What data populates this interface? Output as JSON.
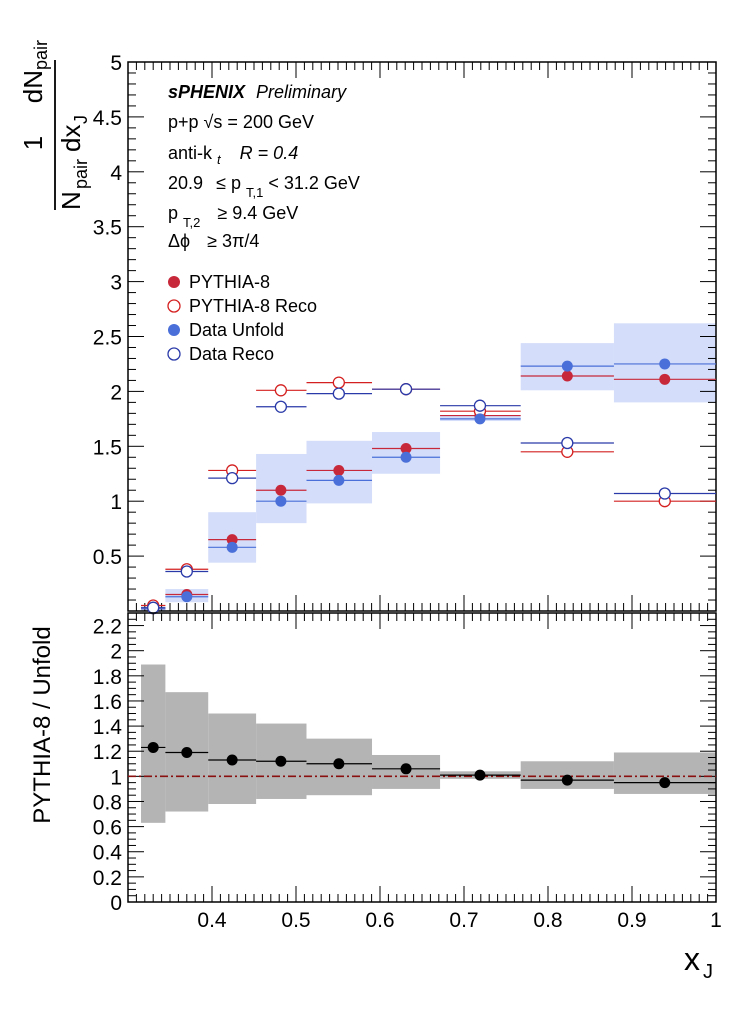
{
  "chart_data": [
    {
      "type": "scatter",
      "panel": "top",
      "ylabel": "1/N_pair dN_pair/dx_J",
      "ylim": [
        0,
        5
      ],
      "xlim": [
        0.3,
        1.0
      ],
      "yticks": [
        "5",
        "4.5",
        "4",
        "3.5",
        "3",
        "2.5",
        "2",
        "1.5",
        "1",
        "0.5"
      ],
      "annotations": {
        "experiment": "sPHENIX",
        "status": "Preliminary",
        "system": "p+p  √s = 200 GeV",
        "jet_algo_pre": "anti-k",
        "jet_algo_sub": "t",
        "jet_R": "R = 0.4",
        "pt1_pre": "20.9",
        "pt1_mid": "≤ p",
        "pt1_sub": "T,1",
        "pt1_post": "< 31.2 GeV",
        "pt2_pre": "p",
        "pt2_sub": "T,2",
        "pt2_post": "≥ 9.4 GeV",
        "dphi_pre": "Δϕ",
        "dphi_post": "≥ 3π/4"
      },
      "bins": [
        0.3155,
        0.3445,
        0.3955,
        0.4525,
        0.5125,
        0.5905,
        0.6715,
        0.7675,
        0.8785,
        1.0
      ],
      "centers": [
        0.33,
        0.37,
        0.424,
        0.482,
        0.551,
        0.631,
        0.719,
        0.823,
        0.939
      ],
      "series": [
        {
          "name": "PYTHIA-8",
          "style": "filled",
          "color": "#c8293a",
          "values": [
            0.02,
            0.15,
            0.65,
            1.1,
            1.28,
            1.48,
            1.78,
            2.14,
            2.11
          ]
        },
        {
          "name": "PYTHIA-8 Reco",
          "style": "open",
          "color": "#d42020",
          "values": [
            0.05,
            0.38,
            1.28,
            2.01,
            2.08,
            2.02,
            1.82,
            1.45,
            1.0
          ]
        },
        {
          "name": "Data Unfold",
          "style": "filled",
          "color": "#4a6fd8",
          "values": [
            0.02,
            0.13,
            0.58,
            1.0,
            1.19,
            1.4,
            1.75,
            2.23,
            2.25
          ],
          "syst_low": [
            0.0,
            0.08,
            0.44,
            0.8,
            0.98,
            1.25,
            1.73,
            2.01,
            1.9
          ],
          "syst_high": [
            0.04,
            0.2,
            0.9,
            1.43,
            1.55,
            1.63,
            1.78,
            2.44,
            2.62
          ]
        },
        {
          "name": "Data Reco",
          "style": "open",
          "color": "#2a3aa8",
          "values": [
            0.03,
            0.36,
            1.21,
            1.86,
            1.98,
            2.02,
            1.87,
            1.53,
            1.07
          ]
        }
      ]
    },
    {
      "type": "scatter",
      "panel": "bottom",
      "ylabel": "PYTHIA-8 / Unfold",
      "xlabel": "x_J",
      "ylim": [
        0,
        2.3
      ],
      "xlim": [
        0.3,
        1.0
      ],
      "yticks": [
        "2.2",
        "2",
        "1.8",
        "1.6",
        "1.4",
        "1.2",
        "1",
        "0.8",
        "0.6",
        "0.4",
        "0.2",
        "0"
      ],
      "xticks": [
        "0.4",
        "0.5",
        "0.6",
        "0.7",
        "0.8",
        "0.9",
        "1"
      ],
      "reference_line": 1.0,
      "series": [
        {
          "name": "PYTHIA-8 / Unfold",
          "color": "#000000",
          "values": [
            1.23,
            1.19,
            1.13,
            1.12,
            1.1,
            1.06,
            1.01,
            0.97,
            0.95
          ],
          "syst_low": [
            0.63,
            0.72,
            0.78,
            0.82,
            0.85,
            0.9,
            0.98,
            0.9,
            0.86
          ],
          "syst_high": [
            1.89,
            1.67,
            1.5,
            1.42,
            1.3,
            1.17,
            1.04,
            1.12,
            1.19
          ]
        }
      ]
    }
  ]
}
